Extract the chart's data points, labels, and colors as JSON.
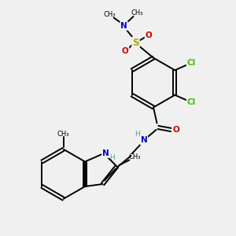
{
  "bg_color": "#f0f0f0",
  "bond_color": "#000000",
  "bond_width": 1.4,
  "atom_colors": {
    "C": "#000000",
    "N": "#0000cc",
    "O": "#cc0000",
    "S": "#aaaa00",
    "Cl": "#44bb00",
    "H": "#5599aa"
  },
  "font_size": 7.5,
  "fig_width": 3.0,
  "fig_height": 3.0,
  "dpi": 100,
  "xlim": [
    0,
    10
  ],
  "ylim": [
    0,
    10
  ]
}
